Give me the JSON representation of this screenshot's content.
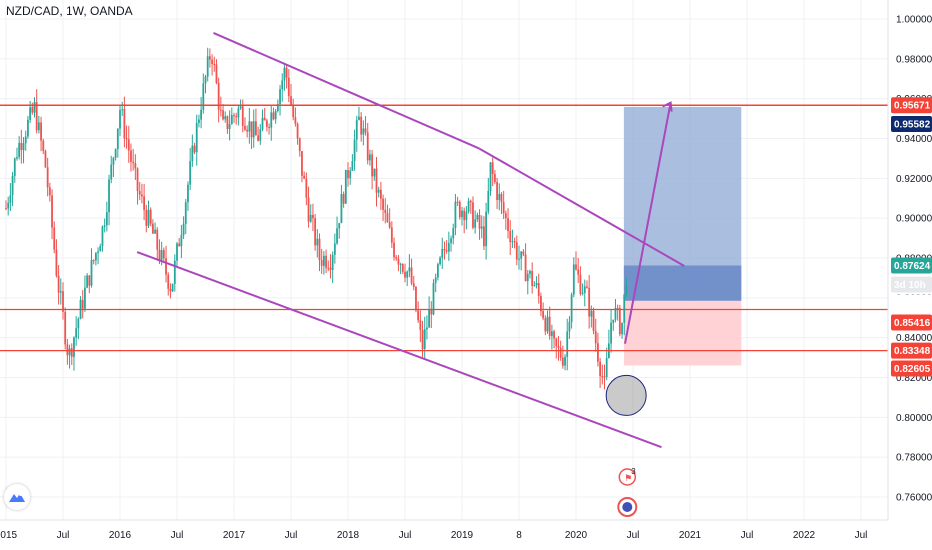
{
  "header": {
    "symbol_title": "NZD/CAD, 1W, OANDA"
  },
  "colors": {
    "up": "#26a69a",
    "down": "#ef5350",
    "trend": "#ab47bc",
    "resistance": "#f44336",
    "target_box": "#8eaad6",
    "stop_box": "#ffcdd2",
    "entry_box": "#6b8cc9",
    "grid": "#eef0f4"
  },
  "badges": {
    "countdown": "3d 10h",
    "event_count": "3"
  },
  "chart_data": {
    "type": "candlestick",
    "title": "NZD/CAD, 1W, OANDA",
    "ylim": [
      0.745,
      1.009
    ],
    "y_ticks": [
      "1.00000",
      "0.98000",
      "0.96000",
      "0.94000",
      "0.92000",
      "0.90000",
      "0.88000",
      "0.86000",
      "0.84000",
      "0.82000",
      "0.80000",
      "0.78000",
      "0.76000"
    ],
    "x_ticks": [
      {
        "label": "2015",
        "t": 2015.0
      },
      {
        "label": "Jul",
        "t": 2015.5
      },
      {
        "label": "2016",
        "t": 2016.0
      },
      {
        "label": "Jul",
        "t": 2016.5
      },
      {
        "label": "2017",
        "t": 2017.0
      },
      {
        "label": "Jul",
        "t": 2017.5
      },
      {
        "label": "2018",
        "t": 2018.0
      },
      {
        "label": "Jul",
        "t": 2018.5
      },
      {
        "label": "2019",
        "t": 2019.0
      },
      {
        "label": "8",
        "t": 2019.5
      },
      {
        "label": "2020",
        "t": 2020.0
      },
      {
        "label": "Jul",
        "t": 2020.5
      },
      {
        "label": "2021",
        "t": 2021.0
      },
      {
        "label": "Jul",
        "t": 2021.5
      },
      {
        "label": "2022",
        "t": 2022.0
      },
      {
        "label": "Jul",
        "t": 2022.5
      }
    ],
    "price_path": [
      [
        2015.0,
        0.905
      ],
      [
        2015.1,
        0.935
      ],
      [
        2015.25,
        0.955
      ],
      [
        2015.35,
        0.925
      ],
      [
        2015.45,
        0.87
      ],
      [
        2015.55,
        0.83
      ],
      [
        2015.7,
        0.865
      ],
      [
        2015.85,
        0.895
      ],
      [
        2016.0,
        0.955
      ],
      [
        2016.15,
        0.915
      ],
      [
        2016.3,
        0.89
      ],
      [
        2016.45,
        0.865
      ],
      [
        2016.55,
        0.9
      ],
      [
        2016.7,
        0.955
      ],
      [
        2016.8,
        0.985
      ],
      [
        2016.9,
        0.945
      ],
      [
        2017.05,
        0.955
      ],
      [
        2017.2,
        0.94
      ],
      [
        2017.35,
        0.955
      ],
      [
        2017.45,
        0.975
      ],
      [
        2017.55,
        0.94
      ],
      [
        2017.65,
        0.905
      ],
      [
        2017.75,
        0.88
      ],
      [
        2017.85,
        0.88
      ],
      [
        2017.95,
        0.91
      ],
      [
        2018.1,
        0.95
      ],
      [
        2018.25,
        0.915
      ],
      [
        2018.4,
        0.885
      ],
      [
        2018.55,
        0.87
      ],
      [
        2018.65,
        0.835
      ],
      [
        2018.8,
        0.875
      ],
      [
        2018.95,
        0.905
      ],
      [
        2019.05,
        0.905
      ],
      [
        2019.2,
        0.89
      ],
      [
        2019.25,
        0.925
      ],
      [
        2019.35,
        0.905
      ],
      [
        2019.5,
        0.88
      ],
      [
        2019.65,
        0.865
      ],
      [
        2019.8,
        0.835
      ],
      [
        2019.9,
        0.83
      ],
      [
        2019.98,
        0.875
      ],
      [
        2020.1,
        0.86
      ],
      [
        2020.2,
        0.83
      ],
      [
        2020.25,
        0.815
      ],
      [
        2020.32,
        0.855
      ],
      [
        2020.4,
        0.845
      ],
      [
        2020.45,
        0.876
      ]
    ],
    "levels": {
      "current_price": "0.87624",
      "entry": "0.85849",
      "support_upper": "0.85416",
      "support_lower": "0.83348",
      "stop": "0.82605",
      "target": "0.95582",
      "resistance": "0.95671"
    },
    "trendlines": [
      {
        "from": [
          2016.82,
          0.993
        ],
        "to": [
          2019.15,
          0.935
        ]
      },
      {
        "from": [
          2019.15,
          0.935
        ],
        "to": [
          2020.95,
          0.876
        ]
      },
      {
        "from": [
          2016.15,
          0.883
        ],
        "to": [
          2020.75,
          0.785
        ]
      }
    ],
    "projection_arrow": {
      "from": [
        2020.43,
        0.837
      ],
      "to": [
        2020.83,
        0.958
      ]
    },
    "position": {
      "t_start": 2020.42,
      "t_end": 2021.45,
      "target": 0.95582,
      "entry": 0.85849,
      "current": 0.87624,
      "stop": 0.82605
    },
    "highlight_circle": {
      "t": 2020.44,
      "price": 0.811
    }
  }
}
